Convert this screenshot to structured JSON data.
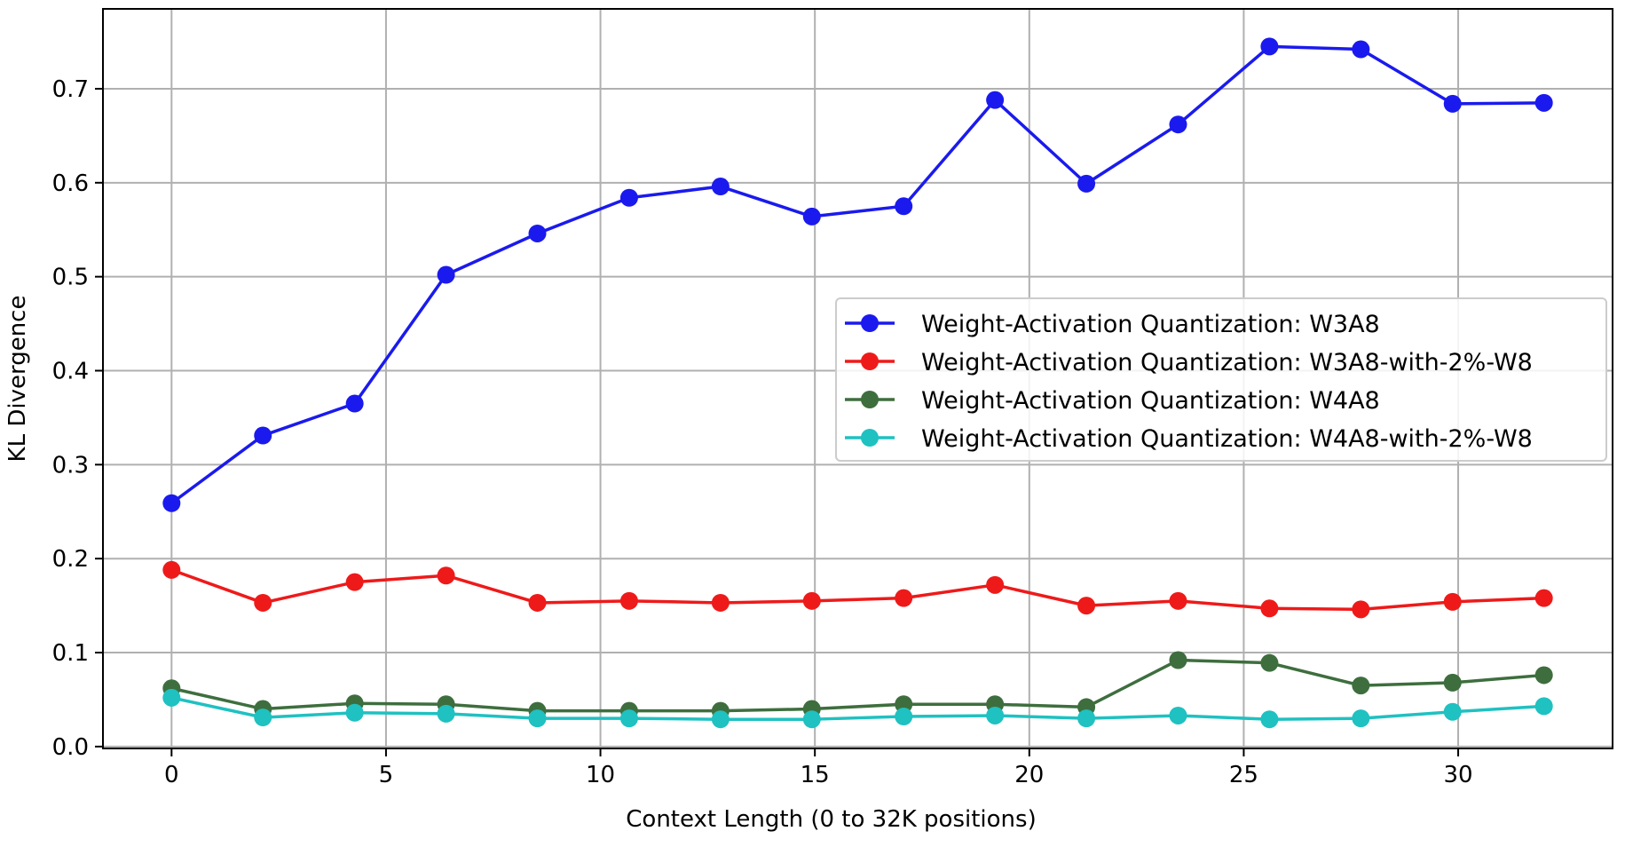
{
  "chart_data": {
    "type": "line",
    "title": "",
    "xlabel": "Context Length (0 to 32K positions)",
    "ylabel": "KL Divergence",
    "xlim": [
      -1.6,
      33.6
    ],
    "ylim": [
      -0.002,
      0.785
    ],
    "xticks": [
      0,
      5,
      10,
      15,
      20,
      25,
      30
    ],
    "yticks": [
      0.0,
      0.1,
      0.2,
      0.3,
      0.4,
      0.5,
      0.6,
      0.7
    ],
    "xtick_labels": [
      "0",
      "5",
      "10",
      "15",
      "20",
      "25",
      "30"
    ],
    "ytick_labels": [
      "0.0",
      "0.1",
      "0.2",
      "0.3",
      "0.4",
      "0.5",
      "0.6",
      "0.7"
    ],
    "grid": true,
    "legend_position": "center-right",
    "x": [
      0,
      2.13,
      4.27,
      6.4,
      8.53,
      10.67,
      12.8,
      14.93,
      17.07,
      19.2,
      21.33,
      23.47,
      25.6,
      27.73,
      29.87,
      32
    ],
    "series": [
      {
        "name": "Weight-Activation Quantization: W3A8",
        "color": "#1a1aee",
        "values": [
          0.259,
          0.331,
          0.365,
          0.502,
          0.546,
          0.584,
          0.596,
          0.564,
          0.575,
          0.688,
          0.599,
          0.662,
          0.745,
          0.742,
          0.684,
          0.685
        ]
      },
      {
        "name": "Weight-Activation Quantization: W3A8-with-2%-W8",
        "color": "#ee1a1a",
        "values": [
          0.188,
          0.153,
          0.175,
          0.182,
          0.153,
          0.155,
          0.153,
          0.155,
          0.158,
          0.172,
          0.15,
          0.155,
          0.147,
          0.146,
          0.154,
          0.158
        ]
      },
      {
        "name": "Weight-Activation Quantization: W4A8",
        "color": "#3e6e3e",
        "values": [
          0.062,
          0.04,
          0.046,
          0.045,
          0.038,
          0.038,
          0.038,
          0.04,
          0.045,
          0.045,
          0.042,
          0.092,
          0.089,
          0.065,
          0.068,
          0.076
        ]
      },
      {
        "name": "Weight-Activation Quantization: W4A8-with-2%-W8",
        "color": "#1fc1c1",
        "values": [
          0.052,
          0.031,
          0.036,
          0.035,
          0.03,
          0.03,
          0.029,
          0.029,
          0.032,
          0.033,
          0.03,
          0.033,
          0.029,
          0.03,
          0.037,
          0.043
        ]
      }
    ]
  }
}
